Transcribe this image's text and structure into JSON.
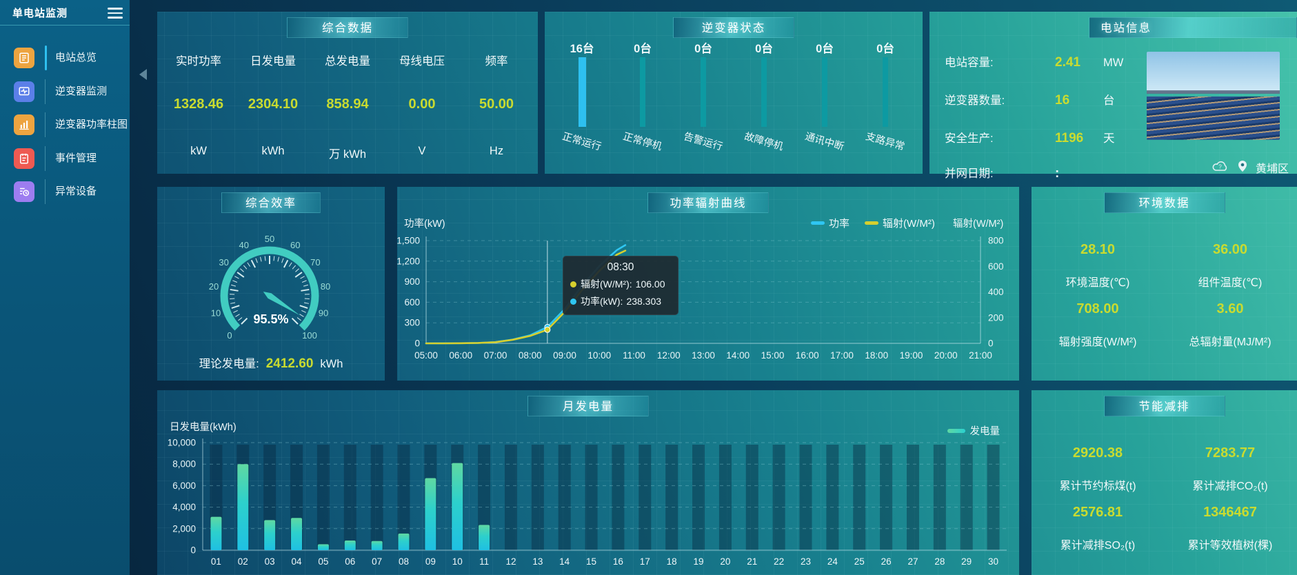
{
  "app": {
    "title": "单电站监测"
  },
  "sidebar": {
    "items": [
      {
        "label": "电站总览",
        "active": true
      },
      {
        "label": "逆变器监测",
        "active": false
      },
      {
        "label": "逆变器功率柱图",
        "active": false
      },
      {
        "label": "事件管理",
        "active": false
      },
      {
        "label": "异常设备",
        "active": false
      }
    ]
  },
  "summary": {
    "title": "综合数据",
    "metrics": [
      {
        "label": "实时功率",
        "value": "1328.46",
        "unit": "kW"
      },
      {
        "label": "日发电量",
        "value": "2304.10",
        "unit": "kWh"
      },
      {
        "label": "总发电量",
        "value": "858.94",
        "unit": "万 kWh"
      },
      {
        "label": "母线电压",
        "value": "0.00",
        "unit": "V"
      },
      {
        "label": "频率",
        "value": "50.00",
        "unit": "Hz"
      }
    ]
  },
  "inverter_status": {
    "title": "逆变器状态",
    "items": [
      {
        "count": "16台",
        "label": "正常运行"
      },
      {
        "count": "0台",
        "label": "正常停机"
      },
      {
        "count": "0台",
        "label": "告警运行"
      },
      {
        "count": "0台",
        "label": "故障停机"
      },
      {
        "count": "0台",
        "label": "通讯中断"
      },
      {
        "count": "0台",
        "label": "支路异常"
      }
    ]
  },
  "station_info": {
    "title": "电站信息",
    "rows": [
      {
        "label": "电站容量:",
        "value": "2.41",
        "unit": "MW"
      },
      {
        "label": "逆变器数量:",
        "value": "16",
        "unit": "台"
      },
      {
        "label": "安全生产:",
        "value": "1196",
        "unit": "天"
      },
      {
        "label": "并网日期:",
        "value": ":",
        "unit": ""
      }
    ],
    "location": "黄埔区"
  },
  "efficiency": {
    "title": "综合效率",
    "value_label": "95.5%",
    "theory_label": "理论发电量:",
    "theory_value": "2412.60",
    "theory_unit": "kWh"
  },
  "power_curve": {
    "title": "功率辐射曲线"
  },
  "environment": {
    "title": "环境数据",
    "cells": [
      {
        "value": "28.10",
        "label": "环境温度(℃)"
      },
      {
        "value": "36.00",
        "label": "组件温度(℃)"
      },
      {
        "value": "708.00",
        "label": "辐射强度(W/M²)"
      },
      {
        "value": "3.60",
        "label": "总辐射量(MJ/M²)"
      }
    ]
  },
  "monthly": {
    "title": "月发电量"
  },
  "saving": {
    "title": "节能减排",
    "cells": [
      {
        "value": "2920.38",
        "label": "累计节约标煤(t)"
      },
      {
        "value": "7283.77",
        "label": "累计减排CO₂(t)"
      },
      {
        "value": "2576.81",
        "label": "累计减排SO₂(t)"
      },
      {
        "value": "1346467",
        "label": "累计等效植树(棵)"
      }
    ]
  },
  "chart_data": [
    {
      "id": "inverter-status",
      "type": "bar",
      "title": "逆变器状态",
      "categories": [
        "正常运行",
        "正常停机",
        "告警运行",
        "故障停机",
        "通讯中断",
        "支路异常"
      ],
      "values": [
        16,
        0,
        0,
        0,
        0,
        0
      ],
      "unit": "台",
      "highlight_color": "#2ec0f0",
      "bar_color": "#0d9aa2"
    },
    {
      "id": "efficiency-gauge",
      "type": "gauge",
      "title": "综合效率",
      "min": 0,
      "max": 100,
      "value": 95.5,
      "label": "95.5%",
      "tick_numbers": [
        0,
        10,
        20,
        30,
        40,
        50,
        60,
        70,
        80,
        90,
        100
      ],
      "color": "#41ccc1"
    },
    {
      "id": "power-radiation",
      "type": "line",
      "title": "功率辐射曲线",
      "x_range_hours": [
        5,
        21
      ],
      "x_axis_ticks": [
        "05:00",
        "06:00",
        "07:00",
        "08:00",
        "09:00",
        "10:00",
        "11:00",
        "12:00",
        "13:00",
        "14:00",
        "15:00",
        "16:00",
        "17:00",
        "18:00",
        "19:00",
        "20:00",
        "21:00"
      ],
      "x_hours": [
        5,
        5.5,
        6,
        6.5,
        7,
        7.5,
        8,
        8.5,
        9,
        9.5,
        10,
        10.5,
        10.75
      ],
      "series": [
        {
          "name": "功率",
          "axis": "left",
          "unit": "kW",
          "color": "#2fc6f2",
          "values": [
            0,
            1,
            2,
            6,
            18,
            55,
            118,
            238.303,
            500,
            840,
            1130,
            1360,
            1435
          ]
        },
        {
          "name": "辐射(W/M²)",
          "axis": "right",
          "unit": "W/M²",
          "color": "#d6cf2e",
          "values": [
            0,
            0,
            1,
            3,
            9,
            28,
            58,
            106,
            245,
            415,
            565,
            690,
            722
          ]
        }
      ],
      "y_left": {
        "name": "功率(kW)",
        "min": 0,
        "max": 1500,
        "ticks": [
          0,
          300,
          600,
          900,
          1200,
          1500
        ]
      },
      "y_right": {
        "name": "辐射(W/M²)",
        "min": 0,
        "max": 800,
        "ticks": [
          0,
          200,
          400,
          600,
          800
        ]
      },
      "legend": [
        "功率",
        "辐射(W/M²)"
      ],
      "grid": true,
      "crosshair_hour": 8.5,
      "tooltip": {
        "time": "08:30",
        "rows": [
          {
            "label": "辐射(W/M²):",
            "value": "106.00",
            "color": "#d6cf2e"
          },
          {
            "label": "功率(kW):",
            "value": "238.303",
            "color": "#2fc6f2"
          }
        ]
      }
    },
    {
      "id": "monthly-generation",
      "type": "bar",
      "title": "月发电量",
      "axis_name": "日发电量(kWh)",
      "legend": "发电量",
      "categories": [
        "01",
        "02",
        "03",
        "04",
        "05",
        "06",
        "07",
        "08",
        "09",
        "10",
        "11",
        "12",
        "13",
        "14",
        "15",
        "16",
        "17",
        "18",
        "19",
        "20",
        "21",
        "22",
        "23",
        "24",
        "25",
        "26",
        "27",
        "28",
        "29",
        "30"
      ],
      "values": [
        3100,
        8000,
        2800,
        3000,
        550,
        900,
        850,
        1550,
        6700,
        8100,
        2350,
        0,
        0,
        0,
        0,
        0,
        0,
        0,
        0,
        0,
        0,
        0,
        0,
        0,
        0,
        0,
        0,
        0,
        0,
        0
      ],
      "ylim": [
        0,
        10000
      ],
      "yticks": [
        0,
        2000,
        4000,
        6000,
        8000,
        10000
      ]
    }
  ]
}
